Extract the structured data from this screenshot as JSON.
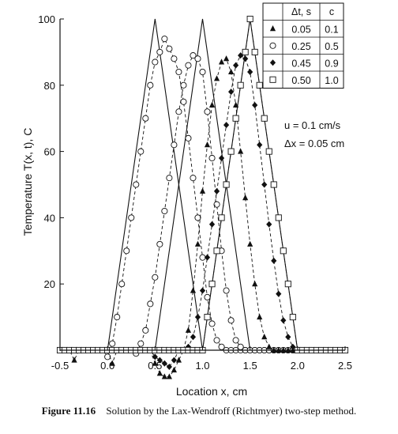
{
  "chart_data": {
    "type": "line",
    "xlabel": "Location x, cm",
    "ylabel": "Temperature T(x, t), C",
    "xlim": [
      -0.5,
      2.5
    ],
    "ylim": [
      0,
      100
    ],
    "xticks": [
      "-0.5",
      "0.0",
      "0.5",
      "1.0",
      "1.5",
      "2.0",
      "2.5"
    ],
    "yticks": [
      "20",
      "40",
      "60",
      "80",
      "100"
    ],
    "grid": false,
    "annotation": [
      "u = 0.1 cm/s",
      "Δx = 0.05 cm"
    ],
    "legend": {
      "placement": "top-right",
      "headers": [
        "Δt, s",
        "c"
      ],
      "rows": [
        {
          "marker": "filled-triangle",
          "dt": "0.05",
          "c": "0.1"
        },
        {
          "marker": "open-circle",
          "dt": "0.25",
          "c": "0.5"
        },
        {
          "marker": "filled-diamond",
          "dt": "0.45",
          "c": "0.9"
        },
        {
          "marker": "open-square",
          "dt": "0.50",
          "c": "1.0"
        }
      ]
    },
    "exact_solutions": [
      {
        "x": [
          -0.5,
          0.0,
          0.5,
          1.0,
          2.5
        ],
        "y": [
          0,
          0,
          100,
          0,
          0
        ]
      },
      {
        "x": [
          -0.5,
          0.5,
          1.0,
          1.5,
          2.5
        ],
        "y": [
          0,
          0,
          100,
          0,
          0
        ]
      },
      {
        "x": [
          -0.5,
          1.0,
          1.5,
          2.0,
          2.5
        ],
        "y": [
          0,
          0,
          100,
          0,
          0
        ]
      }
    ],
    "series": [
      {
        "marker": "open-circle",
        "dashed": true,
        "x": [
          -0.5,
          -0.45,
          -0.4,
          -0.35,
          -0.3,
          -0.25,
          -0.2,
          -0.15,
          -0.1,
          -0.05,
          0.0,
          0.05,
          0.1,
          0.15,
          0.2,
          0.25,
          0.3,
          0.35,
          0.4,
          0.45,
          0.5,
          0.55,
          0.6,
          0.65,
          0.7,
          0.75,
          0.8,
          0.85,
          0.9,
          0.95,
          1.0,
          1.05,
          1.1,
          1.15,
          1.2,
          1.25,
          1.3,
          1.35,
          1.4,
          1.45,
          1.5,
          1.55,
          1.6,
          1.65,
          1.7,
          1.75,
          1.8,
          1.85,
          1.9,
          1.95,
          2.0,
          2.05,
          2.1,
          2.15,
          2.2,
          2.25,
          2.3,
          2.35,
          2.4,
          2.45,
          2.5
        ],
        "y": [
          0,
          0,
          0,
          0,
          0,
          0,
          0,
          0,
          0,
          0,
          -2,
          2,
          10,
          20,
          30,
          40,
          50,
          60,
          70,
          80,
          87,
          90,
          94,
          91,
          88,
          84,
          75,
          64,
          52,
          40,
          28,
          16,
          8,
          3,
          1,
          0,
          0,
          0,
          0,
          0,
          0,
          0,
          0,
          0,
          0,
          0,
          0,
          0,
          0,
          0,
          0,
          0,
          0,
          0,
          0,
          0,
          0,
          0,
          0,
          0,
          0
        ]
      },
      {
        "marker": "open-circle",
        "dashed": true,
        "x": [
          -0.5,
          -0.45,
          -0.4,
          -0.35,
          -0.3,
          -0.25,
          -0.2,
          -0.15,
          -0.1,
          -0.05,
          0.0,
          0.05,
          0.1,
          0.15,
          0.2,
          0.25,
          0.3,
          0.35,
          0.4,
          0.45,
          0.5,
          0.55,
          0.6,
          0.65,
          0.7,
          0.75,
          0.8,
          0.85,
          0.9,
          0.95,
          1.0,
          1.05,
          1.1,
          1.15,
          1.2,
          1.25,
          1.3,
          1.35,
          1.4,
          1.45,
          1.5,
          1.55,
          1.6,
          1.65,
          1.7,
          1.75,
          1.8,
          1.85,
          1.9,
          1.95,
          2.0,
          2.05,
          2.1,
          2.15,
          2.2,
          2.25,
          2.3,
          2.35,
          2.4,
          2.45,
          2.5
        ],
        "y": [
          0,
          0,
          0,
          0,
          0,
          0,
          0,
          0,
          0,
          0,
          0,
          0,
          0,
          0,
          0,
          0,
          -1,
          2,
          6,
          14,
          22,
          32,
          42,
          52,
          62,
          72,
          80,
          86,
          89,
          88,
          84,
          72,
          58,
          44,
          30,
          18,
          9,
          3,
          1,
          0,
          0,
          0,
          0,
          0,
          0,
          0,
          0,
          0,
          0,
          0,
          0,
          0,
          0,
          0,
          0,
          0,
          0,
          0,
          0,
          0,
          0
        ]
      },
      {
        "marker": "filled-triangle",
        "dashed": true,
        "x": [
          -0.5,
          -0.45,
          -0.4,
          -0.35,
          -0.3,
          -0.25,
          -0.2,
          -0.15,
          -0.1,
          -0.05,
          0.0,
          0.05,
          0.1,
          0.15,
          0.2,
          0.25,
          0.3,
          0.35,
          0.4,
          0.45,
          0.5,
          0.55,
          0.6,
          0.65,
          0.7,
          0.75,
          0.8,
          0.85,
          0.9,
          0.95,
          1.0,
          1.05,
          1.1,
          1.15,
          1.2,
          1.25,
          1.3,
          1.35,
          1.4,
          1.45,
          1.5,
          1.55,
          1.6,
          1.65,
          1.7,
          1.75,
          1.8,
          1.85,
          1.9,
          1.95,
          2.0,
          2.05,
          2.1,
          2.15,
          2.2,
          2.25,
          2.3,
          2.35,
          2.4,
          2.45,
          2.5
        ],
        "y": [
          0,
          0,
          0,
          -3,
          0,
          0,
          0,
          0,
          0,
          0,
          0,
          -4,
          0,
          0,
          0,
          0,
          0,
          0,
          0,
          0,
          -4,
          -7,
          -8,
          -8,
          -6,
          -3,
          0,
          6,
          18,
          32,
          48,
          62,
          74,
          82,
          87,
          88,
          84,
          74,
          60,
          46,
          32,
          20,
          10,
          4,
          1,
          0,
          0,
          0,
          0,
          0,
          0,
          0,
          0,
          0,
          0,
          0,
          0,
          0,
          0,
          0,
          0
        ]
      },
      {
        "marker": "filled-diamond",
        "dashed": true,
        "x": [
          -0.5,
          -0.45,
          -0.4,
          -0.35,
          -0.3,
          -0.25,
          -0.2,
          -0.15,
          -0.1,
          -0.05,
          0.0,
          0.05,
          0.1,
          0.15,
          0.2,
          0.25,
          0.3,
          0.35,
          0.4,
          0.45,
          0.5,
          0.55,
          0.6,
          0.65,
          0.7,
          0.75,
          0.8,
          0.85,
          0.9,
          0.95,
          1.0,
          1.05,
          1.1,
          1.15,
          1.2,
          1.25,
          1.3,
          1.35,
          1.4,
          1.45,
          1.5,
          1.55,
          1.6,
          1.65,
          1.7,
          1.75,
          1.8,
          1.85,
          1.9,
          1.95,
          2.0,
          2.05,
          2.1,
          2.15,
          2.2,
          2.25,
          2.3,
          2.35,
          2.4,
          2.45,
          2.5
        ],
        "y": [
          0,
          0,
          0,
          0,
          0,
          0,
          0,
          0,
          0,
          0,
          0,
          0,
          0,
          0,
          0,
          0,
          0,
          0,
          0,
          0,
          -2,
          -3,
          -4,
          -5,
          -3,
          0,
          0,
          1,
          4,
          10,
          18,
          28,
          38,
          48,
          58,
          68,
          78,
          86,
          89,
          88,
          84,
          74,
          62,
          50,
          38,
          27,
          17,
          9,
          4,
          1,
          0,
          0,
          0,
          0,
          0,
          0,
          0,
          0,
          0,
          0,
          0
        ]
      },
      {
        "marker": "open-square",
        "dashed": true,
        "x": [
          -0.5,
          -0.45,
          -0.4,
          -0.35,
          -0.3,
          -0.25,
          -0.2,
          -0.15,
          -0.1,
          -0.05,
          0.0,
          0.05,
          0.1,
          0.15,
          0.2,
          0.25,
          0.3,
          0.35,
          0.4,
          0.45,
          0.5,
          0.55,
          0.6,
          0.65,
          0.7,
          0.75,
          0.8,
          0.85,
          0.9,
          0.95,
          1.0,
          1.05,
          1.1,
          1.15,
          1.2,
          1.25,
          1.3,
          1.35,
          1.4,
          1.45,
          1.5,
          1.55,
          1.6,
          1.65,
          1.7,
          1.75,
          1.8,
          1.85,
          1.9,
          1.95,
          2.0,
          2.05,
          2.1,
          2.15,
          2.2,
          2.25,
          2.3,
          2.35,
          2.4,
          2.45,
          2.5
        ],
        "y": [
          0,
          0,
          0,
          0,
          0,
          0,
          0,
          0,
          0,
          0,
          0,
          0,
          0,
          0,
          0,
          0,
          0,
          0,
          0,
          0,
          0,
          0,
          0,
          0,
          0,
          0,
          0,
          0,
          0,
          0,
          0,
          10,
          20,
          30,
          40,
          50,
          60,
          70,
          80,
          90,
          100,
          90,
          80,
          70,
          60,
          50,
          40,
          30,
          20,
          10,
          0,
          0,
          0,
          0,
          0,
          0,
          0,
          0,
          0,
          0,
          0
        ]
      }
    ]
  },
  "caption": {
    "number": "Figure 11.16",
    "text": "Solution by the Lax-Wendroff (Richtmyer) two-step method."
  }
}
